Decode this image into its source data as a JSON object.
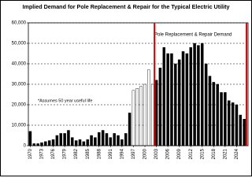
{
  "chart_data": {
    "type": "bar",
    "title": "Implied Demand for Pole Replacement & Repair for the Typical Electric Utility",
    "annotations": [
      "Pole Replacement & Repair Demand",
      "*Assumes 50 year useful life"
    ],
    "x": [
      1970,
      1971,
      1972,
      1973,
      1974,
      1975,
      1976,
      1977,
      1978,
      1979,
      1980,
      1981,
      1982,
      1983,
      1984,
      1985,
      1986,
      1987,
      1988,
      1989,
      1990,
      1991,
      1992,
      1993,
      1994,
      1995,
      1996,
      1997,
      1998,
      1999,
      2000,
      2001,
      2002,
      2003,
      2004,
      2005,
      2006,
      2007,
      2008,
      2009,
      2010,
      2011,
      2012,
      2013,
      2014,
      2015,
      2016,
      2017,
      2018,
      2019,
      2020,
      2021,
      2022,
      2023,
      2024,
      2025,
      2026
    ],
    "values": [
      7000,
      1000,
      1000,
      1500,
      2000,
      2500,
      3000,
      5000,
      6000,
      6000,
      7500,
      4000,
      2500,
      3000,
      2000,
      3000,
      5000,
      4000,
      6500,
      7500,
      6000,
      4000,
      6000,
      5000,
      3000,
      6000,
      16000,
      27000,
      28000,
      29000,
      30000,
      37000,
      30000,
      32000,
      38000,
      48000,
      45000,
      45000,
      40000,
      42000,
      46000,
      45000,
      48000,
      50000,
      49000,
      50000,
      40000,
      34000,
      31000,
      30000,
      26000,
      26000,
      22000,
      21000,
      20000,
      15000,
      13000
    ],
    "colors": [
      "#000",
      "#000",
      "#000",
      "#000",
      "#000",
      "#000",
      "#000",
      "#000",
      "#000",
      "#000",
      "#000",
      "#000",
      "#000",
      "#000",
      "#000",
      "#000",
      "#000",
      "#000",
      "#000",
      "#000",
      "#000",
      "#000",
      "#000",
      "#000",
      "#000",
      "#000",
      "#000",
      "#fff",
      "#fff",
      "#fff",
      "#fff",
      "#fff",
      "#fff",
      "#000",
      "#000",
      "#000",
      "#000",
      "#000",
      "#000",
      "#000",
      "#000",
      "#000",
      "#000",
      "#000",
      "#000",
      "#000",
      "#000",
      "#000",
      "#000",
      "#000",
      "#000",
      "#000",
      "#000",
      "#000",
      "#000",
      "#000",
      "#000"
    ],
    "xlim": [
      1969.5,
      2027
    ],
    "xticks": [
      1970,
      1973,
      1976,
      1979,
      1982,
      1985,
      1988,
      1991,
      1994,
      1997,
      2000,
      2003,
      2006,
      2009,
      2012,
      2015,
      2018,
      2021,
      2024
    ],
    "ylim": [
      0,
      60000
    ],
    "yticks": [
      0,
      {
        "value": 10000,
        "label": "10,000"
      },
      {
        "value": 20000,
        "label": "20,000"
      },
      {
        "value": 30000,
        "label": "30,000"
      },
      {
        "value": 40000,
        "label": "40,000"
      },
      {
        "value": 50000,
        "label": "50,000"
      },
      {
        "value": 60000,
        "label": "60,000"
      }
    ],
    "grid": true,
    "vlines": [
      {
        "x": 2002.5,
        "color": "#e00000"
      },
      {
        "x": 2026.6,
        "color": "#e00000"
      }
    ]
  }
}
